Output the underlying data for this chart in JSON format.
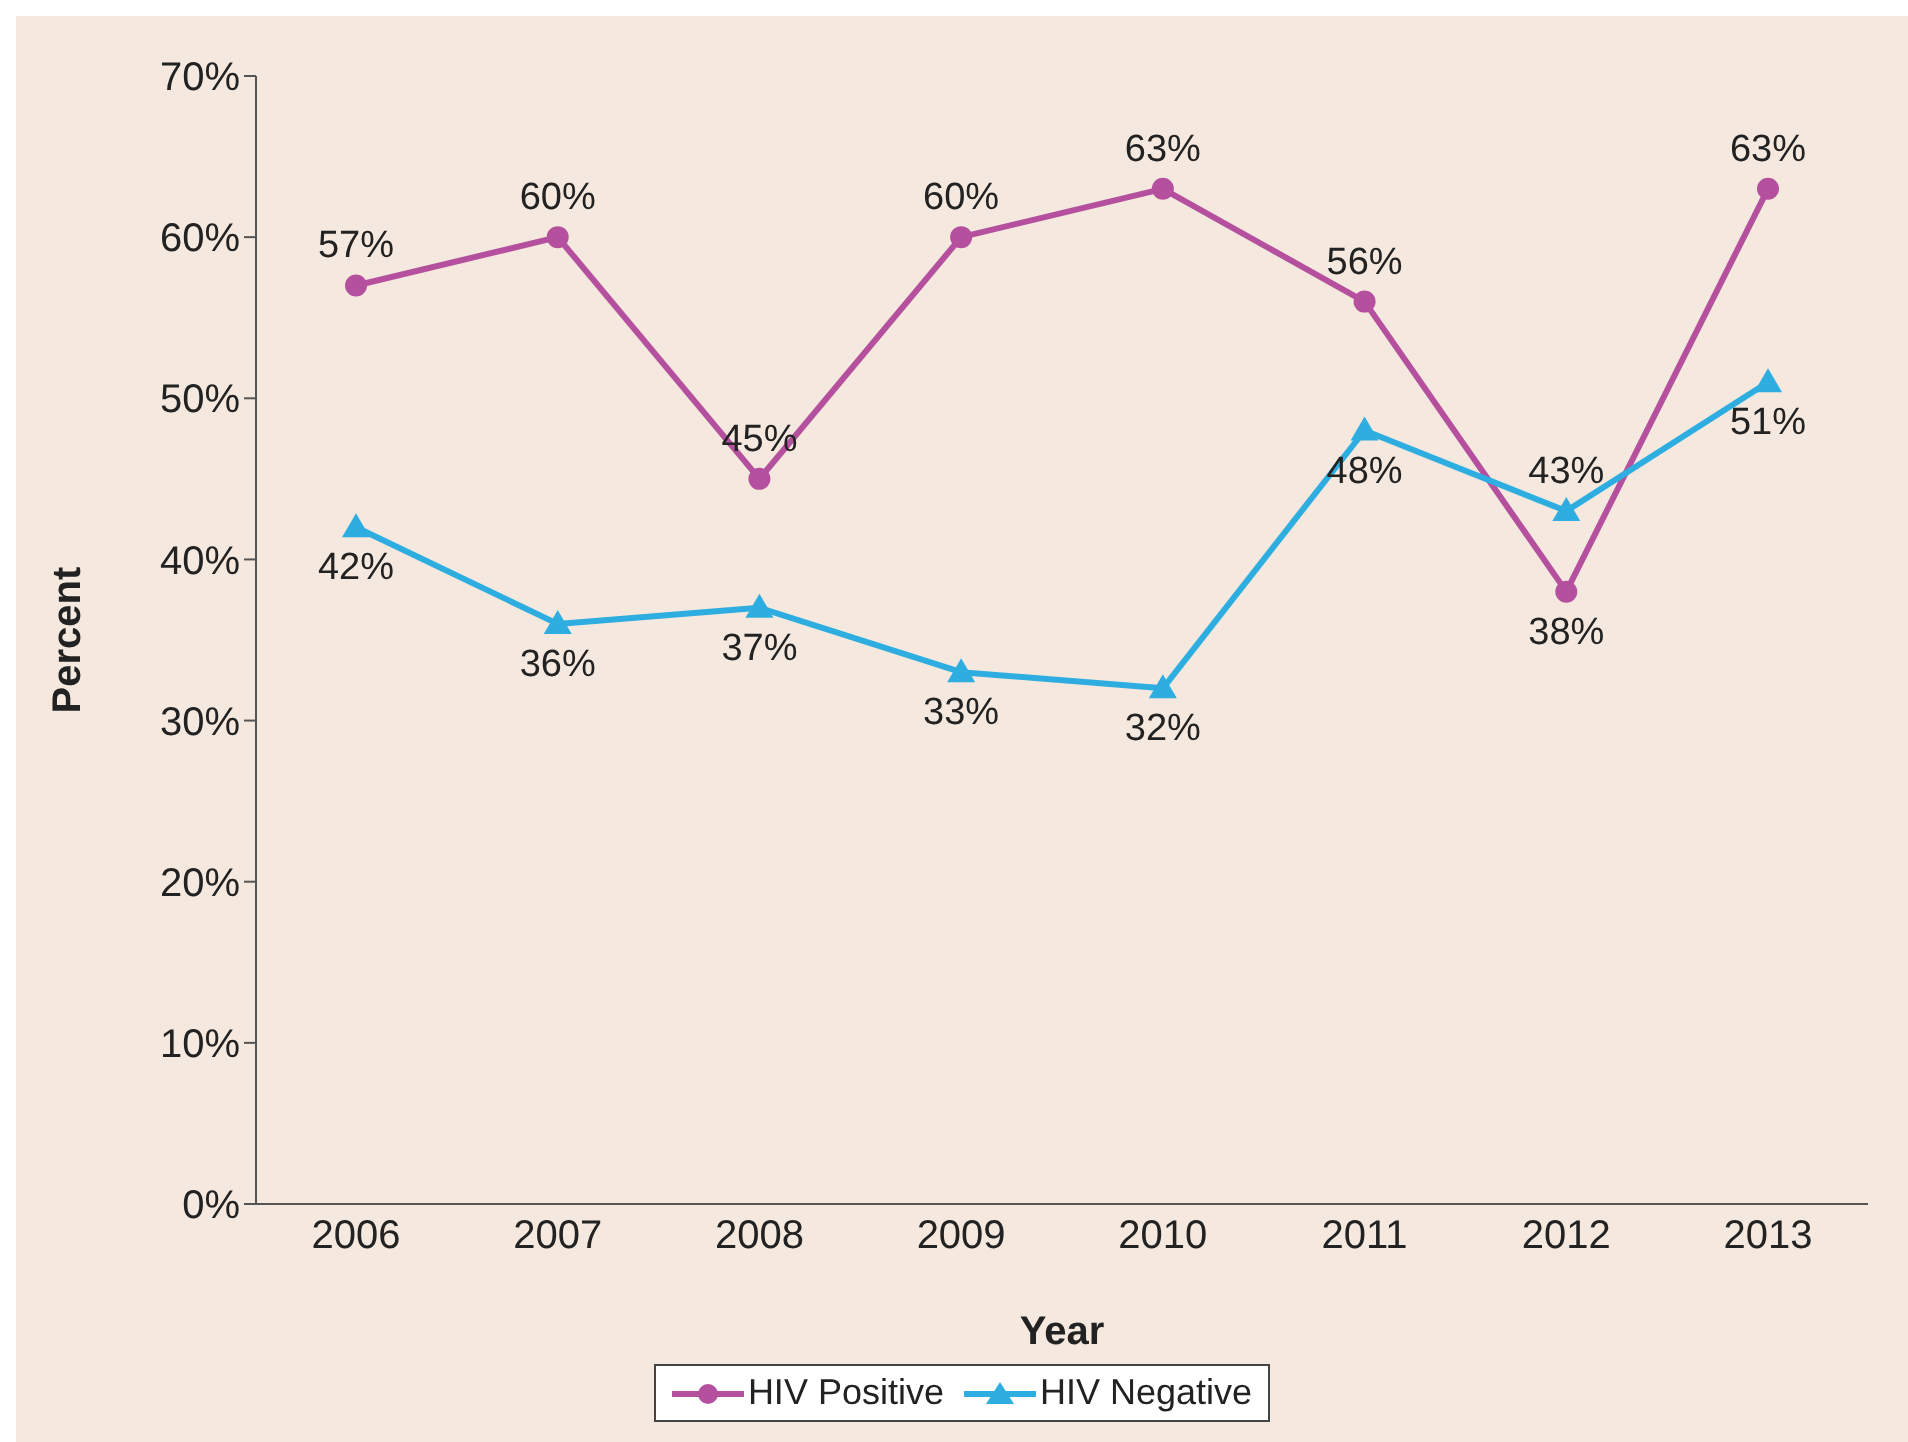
{
  "chart_data": {
    "type": "line",
    "xlabel": "Year",
    "ylabel": "Percent",
    "categories": [
      "2006",
      "2007",
      "2008",
      "2009",
      "2010",
      "2011",
      "2012",
      "2013"
    ],
    "series": [
      {
        "name": "HIV Positive",
        "color": "#b5509f",
        "marker": "circle",
        "values": [
          57,
          60,
          45,
          60,
          63,
          56,
          38,
          63
        ],
        "value_labels": [
          "57%",
          "60%",
          "45%",
          "60%",
          "63%",
          "56%",
          "38%",
          "63%"
        ]
      },
      {
        "name": "HIV Negative",
        "color": "#2eaee0",
        "marker": "triangle",
        "values": [
          42,
          36,
          37,
          33,
          32,
          48,
          43,
          51
        ],
        "value_labels": [
          "42%",
          "36%",
          "37%",
          "33%",
          "32%",
          "48%",
          "43%",
          "51%"
        ]
      }
    ],
    "ylim": [
      0,
      70
    ],
    "yticks": [
      {
        "value": 0,
        "label": "0%"
      },
      {
        "value": 10,
        "label": "10%"
      },
      {
        "value": 20,
        "label": "20%"
      },
      {
        "value": 30,
        "label": "30%"
      },
      {
        "value": 40,
        "label": "40%"
      },
      {
        "value": 50,
        "label": "50%"
      },
      {
        "value": 60,
        "label": "60%"
      },
      {
        "value": 70,
        "label": "70%"
      }
    ],
    "grid": false,
    "legend": "bottom"
  }
}
